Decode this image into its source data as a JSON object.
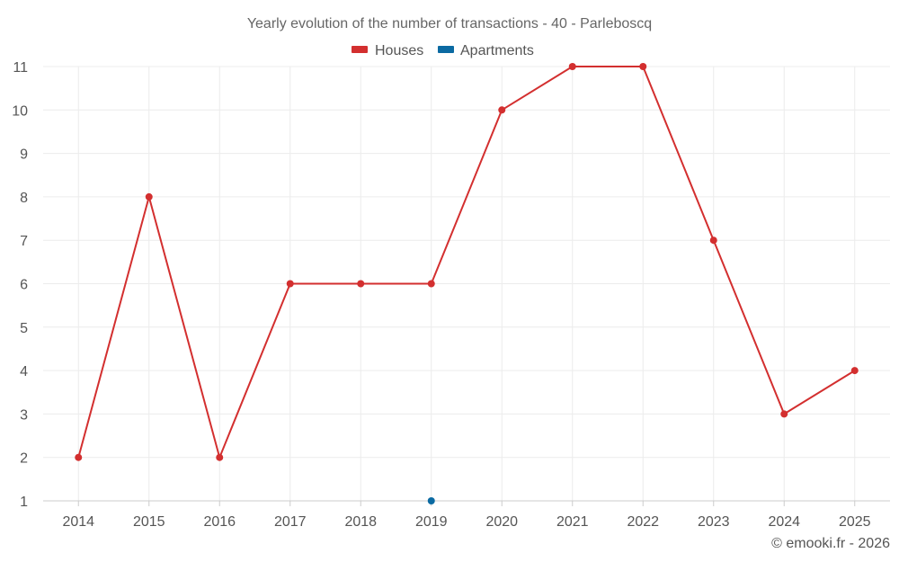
{
  "chart_data": {
    "type": "line",
    "title": "Yearly evolution of the number of transactions - 40 - Parleboscq",
    "categories": [
      "2014",
      "2015",
      "2016",
      "2017",
      "2018",
      "2019",
      "2020",
      "2021",
      "2022",
      "2023",
      "2024",
      "2025"
    ],
    "series": [
      {
        "name": "Houses",
        "color": "#d32f2f",
        "values": [
          2,
          8,
          2,
          6,
          6,
          6,
          10,
          11,
          11,
          7,
          3,
          4
        ]
      },
      {
        "name": "Apartments",
        "color": "#0b6aa2",
        "values": [
          null,
          null,
          null,
          null,
          null,
          1,
          null,
          null,
          null,
          null,
          null,
          null
        ]
      }
    ],
    "ylim": [
      1,
      11
    ],
    "yticks": [
      1,
      2,
      3,
      4,
      5,
      6,
      7,
      8,
      9,
      10,
      11
    ],
    "xlabel": "",
    "ylabel": "",
    "grid": true,
    "legend_position": "top-center"
  },
  "credit": "© emooki.fr - 2026"
}
